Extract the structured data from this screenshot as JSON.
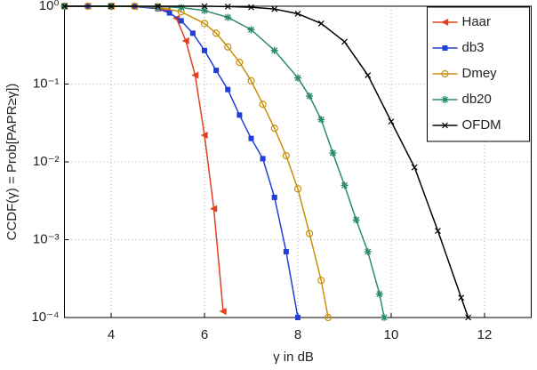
{
  "chart_data": {
    "type": "line",
    "xlabel": "γ in dB",
    "ylabel": "CCDF(γ) = Prob[PAPR≥γ])",
    "xlim": [
      3,
      13
    ],
    "xticks": [
      4,
      6,
      8,
      10,
      12
    ],
    "ylim": [
      0.0001,
      1
    ],
    "yscale": "log",
    "yticks": [
      {
        "value": 0.0001,
        "label": "10⁻⁴"
      },
      {
        "value": 0.001,
        "label": "10⁻³"
      },
      {
        "value": 0.01,
        "label": "10⁻²"
      },
      {
        "value": 0.1,
        "label": "10⁻¹"
      },
      {
        "value": 1,
        "label": "10⁰"
      }
    ],
    "grid": true,
    "legend": "upper right",
    "series": [
      {
        "name": "Haar",
        "color": "#e0401f",
        "marker": "triangle-left",
        "x": [
          3,
          3.5,
          4,
          4.5,
          5,
          5.2,
          5.4,
          5.6,
          5.8,
          6.0,
          6.2,
          6.4
        ],
        "values": [
          1,
          1,
          1,
          0.99,
          0.95,
          0.88,
          0.7,
          0.36,
          0.13,
          0.022,
          0.0025,
          0.00012
        ]
      },
      {
        "name": "db3",
        "color": "#1f3fd6",
        "marker": "square",
        "x": [
          3,
          3.5,
          4,
          4.5,
          5,
          5.25,
          5.5,
          5.75,
          6,
          6.25,
          6.5,
          6.75,
          7,
          7.25,
          7.5,
          7.75,
          8
        ],
        "values": [
          1,
          1,
          1,
          0.99,
          0.93,
          0.82,
          0.65,
          0.45,
          0.27,
          0.15,
          0.085,
          0.04,
          0.02,
          0.011,
          0.0035,
          0.0007,
          0.0001
        ]
      },
      {
        "name": "Dmey",
        "color": "#c8900a",
        "marker": "circle",
        "x": [
          3,
          3.5,
          4,
          4.5,
          5,
          5.5,
          6,
          6.25,
          6.5,
          6.75,
          7,
          7.25,
          7.5,
          7.75,
          8,
          8.25,
          8.5,
          8.65
        ],
        "values": [
          1,
          1,
          1,
          1,
          0.97,
          0.85,
          0.6,
          0.45,
          0.3,
          0.19,
          0.11,
          0.055,
          0.027,
          0.012,
          0.0045,
          0.0012,
          0.0003,
          0.0001
        ]
      },
      {
        "name": "db20",
        "color": "#2e8b6a",
        "marker": "asterisk",
        "x": [
          3,
          4,
          5,
          5.5,
          6,
          6.5,
          7,
          7.5,
          8,
          8.25,
          8.5,
          8.75,
          9,
          9.25,
          9.5,
          9.75,
          9.85
        ],
        "values": [
          1,
          1,
          0.99,
          0.96,
          0.88,
          0.72,
          0.5,
          0.27,
          0.12,
          0.07,
          0.035,
          0.013,
          0.005,
          0.0018,
          0.0007,
          0.0002,
          0.0001
        ]
      },
      {
        "name": "OFDM",
        "color": "#000000",
        "marker": "x",
        "x": [
          3,
          4,
          5,
          6,
          6.5,
          7,
          7.5,
          8,
          8.5,
          9,
          9.5,
          10,
          10.5,
          11,
          11.5,
          11.65
        ],
        "values": [
          1,
          1,
          1,
          1,
          0.99,
          0.97,
          0.92,
          0.8,
          0.6,
          0.35,
          0.13,
          0.033,
          0.0085,
          0.0013,
          0.00018,
          0.0001
        ]
      }
    ]
  }
}
